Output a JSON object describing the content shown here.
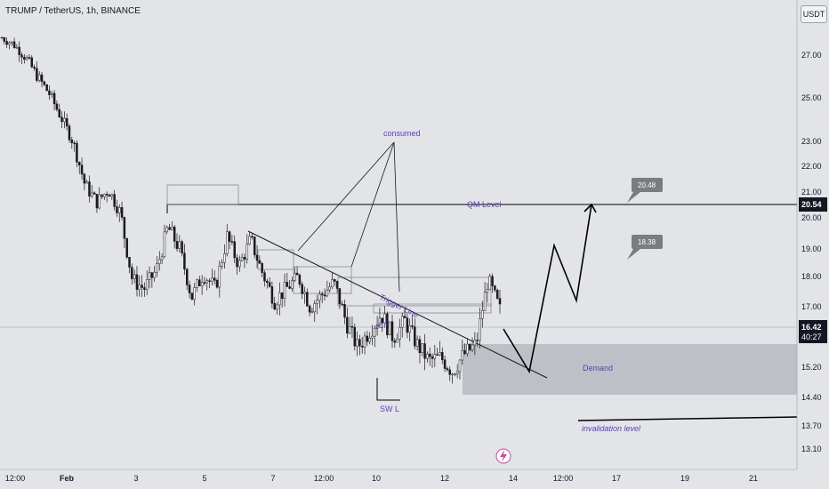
{
  "header": {
    "title": "TRUMP / TetherUS, 1h, BINANCE",
    "currency": "USDT"
  },
  "chart_data": {
    "type": "candlestick",
    "x_ticks": [
      "12:00",
      "Feb",
      "3",
      "5",
      "7",
      "12:00",
      "10",
      "12",
      "14",
      "12:00",
      "17",
      "19",
      "21"
    ],
    "y_ticks": [
      27.0,
      25.0,
      23.0,
      22.0,
      21.0,
      20.0,
      19.0,
      18.0,
      17.0,
      15.2,
      14.4,
      13.7,
      13.1
    ],
    "price_path": [
      [
        28.0,
        "12:00"
      ],
      [
        27.6,
        null
      ],
      [
        26.9,
        null
      ],
      [
        26.0,
        "Feb"
      ],
      [
        25.2,
        null
      ],
      [
        24.1,
        null
      ],
      [
        23.0,
        null
      ],
      [
        21.3,
        null
      ],
      [
        20.6,
        null
      ],
      [
        21.1,
        null
      ],
      [
        20.2,
        "3"
      ],
      [
        17.9,
        null
      ],
      [
        17.6,
        null
      ],
      [
        18.2,
        null
      ],
      [
        19.7,
        null
      ],
      [
        19.0,
        null
      ],
      [
        17.3,
        "5"
      ],
      [
        18.1,
        null
      ],
      [
        17.6,
        null
      ],
      [
        19.4,
        null
      ],
      [
        18.4,
        null
      ],
      [
        19.3,
        "7"
      ],
      [
        18.1,
        null
      ],
      [
        17.2,
        null
      ],
      [
        17.6,
        null
      ],
      [
        18.0,
        "12:00"
      ],
      [
        17.0,
        null
      ],
      [
        17.4,
        null
      ],
      [
        17.8,
        null
      ],
      [
        16.6,
        null
      ],
      [
        15.8,
        "10"
      ],
      [
        16.3,
        null
      ],
      [
        16.8,
        null
      ],
      [
        16.1,
        null
      ],
      [
        16.6,
        null
      ],
      [
        15.9,
        null
      ],
      [
        15.4,
        "12"
      ],
      [
        15.5,
        null
      ],
      [
        15.1,
        null
      ],
      [
        15.6,
        null
      ],
      [
        15.9,
        null
      ],
      [
        17.9,
        null
      ],
      [
        16.9,
        null
      ]
    ],
    "current_price": "16.42",
    "countdown": "40:27",
    "qm_price": "20.54",
    "annotations": {
      "consumed": "consumed",
      "qm_level": "QM Level",
      "trigger_line": "Trigger Line",
      "ich": "iCH",
      "sw_l": "SW L",
      "demand": "Demand",
      "invalidation": "invalidation level",
      "target_high": "20.48",
      "target_mid": "18.38"
    },
    "projection": [
      16.5,
      15.2,
      19.1,
      17.2,
      20.5
    ]
  }
}
